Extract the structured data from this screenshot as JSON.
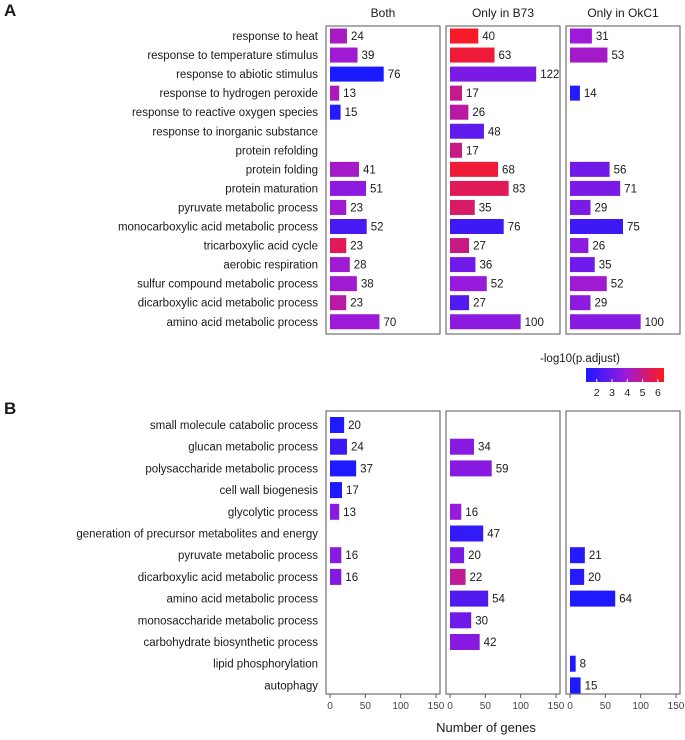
{
  "chart_data": [
    {
      "panel": "A",
      "type": "bar",
      "orientation": "horizontal",
      "columns": [
        "Both",
        "Only in B73",
        "Only in OkC1"
      ],
      "categories": [
        "response to heat",
        "response to temperature stimulus",
        "response to abiotic stimulus",
        "response to hydrogen peroxide",
        "response to reactive oxygen species",
        "response to inorganic substance",
        "protein refolding",
        "protein folding",
        "protein maturation",
        "pyruvate metabolic process",
        "monocarboxylic acid metabolic process",
        "tricarboxylic acid cycle",
        "aerobic respiration",
        "sulfur compound metabolic process",
        "dicarboxylic acid metabolic process",
        "amino acid metabolic process"
      ],
      "xlim": [
        0,
        150
      ],
      "series": [
        {
          "name": "Both",
          "values": [
            24,
            39,
            76,
            13,
            15,
            null,
            null,
            41,
            51,
            23,
            52,
            23,
            28,
            38,
            23,
            70
          ],
          "neg_log10_padj": [
            4.2,
            4.0,
            1.3,
            4.3,
            1.5,
            null,
            null,
            4.1,
            3.6,
            4.0,
            2.2,
            5.6,
            4.0,
            4.0,
            4.6,
            3.9
          ]
        },
        {
          "name": "Only in B73",
          "values": [
            40,
            63,
            122,
            17,
            26,
            48,
            17,
            68,
            83,
            35,
            76,
            27,
            36,
            52,
            27,
            100
          ],
          "neg_log10_padj": [
            6.2,
            6.0,
            3.2,
            4.9,
            4.6,
            2.7,
            5.0,
            6.0,
            5.6,
            5.4,
            2.0,
            5.0,
            3.0,
            3.8,
            2.4,
            3.6
          ]
        },
        {
          "name": "Only in OkC1",
          "values": [
            31,
            53,
            null,
            14,
            null,
            null,
            null,
            56,
            71,
            29,
            75,
            26,
            35,
            52,
            29,
            100
          ],
          "neg_log10_padj": [
            3.9,
            4.1,
            null,
            1.5,
            null,
            null,
            null,
            3.0,
            3.2,
            3.2,
            2.0,
            3.6,
            3.0,
            4.0,
            3.6,
            3.5
          ]
        }
      ],
      "legend": {
        "title": "-log10(p.adjust)",
        "ticks": [
          "2",
          "3",
          "4",
          "5",
          "6"
        ],
        "range": [
          1.3,
          6.4
        ],
        "colors": [
          "#1a1aff",
          "#9a1adc",
          "#ff1a1a"
        ]
      }
    },
    {
      "panel": "B",
      "type": "bar",
      "orientation": "horizontal",
      "columns": [
        "Both",
        "Only in B73",
        "Only in OkC1"
      ],
      "categories": [
        "small molecule catabolic process",
        "glucan metabolic process",
        "polysaccharide metabolic process",
        "cell wall biogenesis",
        "glycolytic process",
        "generation of precursor metabolites and energy",
        "pyruvate metabolic process",
        "dicarboxylic acid metabolic process",
        "amino acid metabolic process",
        "monosaccharide metabolic process",
        "carbohydrate biosynthetic process",
        "lipid phosphorylation",
        "autophagy"
      ],
      "xlim": [
        0,
        150
      ],
      "xticks": [
        "0",
        "50",
        "100",
        "150"
      ],
      "xlabel": "Number of genes",
      "series": [
        {
          "name": "Both",
          "values": [
            20,
            24,
            37,
            17,
            13,
            null,
            16,
            16,
            null,
            null,
            null,
            null,
            null
          ],
          "neg_log10_padj": [
            1.4,
            2.0,
            1.4,
            1.4,
            3.5,
            null,
            3.5,
            3.4,
            null,
            null,
            null,
            null,
            null
          ]
        },
        {
          "name": "Only in B73",
          "values": [
            null,
            34,
            59,
            null,
            16,
            47,
            20,
            22,
            54,
            30,
            42,
            null,
            null
          ],
          "neg_log10_padj": [
            null,
            3.5,
            3.5,
            null,
            3.8,
            1.8,
            3.2,
            4.8,
            2.4,
            3.0,
            3.5,
            null,
            null
          ]
        },
        {
          "name": "Only in OkC1",
          "values": [
            null,
            null,
            null,
            null,
            null,
            null,
            21,
            20,
            64,
            null,
            null,
            8,
            15
          ],
          "neg_log10_padj": [
            null,
            null,
            null,
            null,
            null,
            null,
            1.5,
            1.5,
            1.4,
            null,
            null,
            1.4,
            1.4
          ]
        }
      ]
    }
  ]
}
